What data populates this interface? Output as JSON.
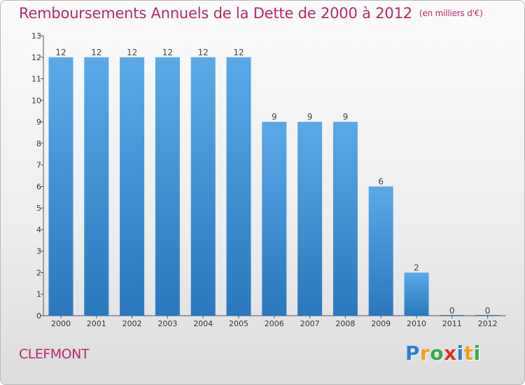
{
  "header": {
    "title": "Remboursements Annuels de la Dette de 2000 à 2012",
    "subtitle": "(en milliers d'€)"
  },
  "footer": {
    "commune": "CLEFMONT",
    "logo_letters": [
      {
        "ch": "P",
        "color": "#2f7fd0"
      },
      {
        "ch": "r",
        "color": "#f0a020"
      },
      {
        "ch": "o",
        "color": "#3aa84a"
      },
      {
        "ch": "x",
        "color": "#d8342c"
      },
      {
        "ch": "i",
        "color": "#2f7fd0"
      },
      {
        "ch": "t",
        "color": "#f0a020"
      },
      {
        "ch": "i",
        "color": "#3aa84a"
      }
    ]
  },
  "colors": {
    "bar_light": "#5aa9e8",
    "bar_dark": "#2a78bd",
    "title": "#b5296b"
  },
  "chart_data": {
    "type": "bar",
    "categories": [
      "2000",
      "2001",
      "2002",
      "2003",
      "2004",
      "2005",
      "2006",
      "2007",
      "2008",
      "2009",
      "2010",
      "2011",
      "2012"
    ],
    "values": [
      12,
      12,
      12,
      12,
      12,
      12,
      9,
      9,
      9,
      6,
      2,
      0,
      0
    ],
    "data_labels": [
      "12",
      "12",
      "12",
      "12",
      "12",
      "12",
      "9",
      "9",
      "9",
      "6",
      "2",
      "0",
      "0"
    ],
    "y_ticks": [
      "0",
      "1",
      "2",
      "3",
      "4",
      "5",
      "6",
      "7",
      "8",
      "9",
      "10",
      "11",
      "12",
      "13"
    ],
    "ylim": [
      0,
      13
    ],
    "grid": false,
    "legend": "none"
  }
}
